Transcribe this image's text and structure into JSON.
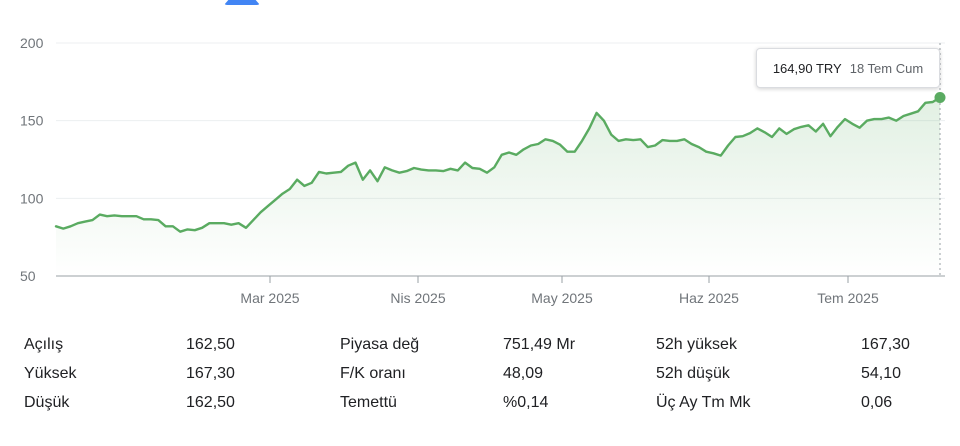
{
  "chart_data": {
    "type": "area",
    "y_ticks": [
      "200",
      "150",
      "100",
      "50"
    ],
    "ylim": [
      50,
      200
    ],
    "x_tick_labels": [
      "Mar 2025",
      "Nis 2025",
      "May 2025",
      "Haz 2025",
      "Tem 2025"
    ],
    "series": [
      {
        "color": "#5aab61",
        "values": [
          82,
          80.5,
          82,
          84,
          85,
          86,
          89.5,
          88.5,
          89,
          88.5,
          88.5,
          88.5,
          86.5,
          86.5,
          86,
          82,
          82,
          78.5,
          80,
          79.5,
          81,
          84,
          84,
          84,
          83,
          84,
          81,
          86,
          91,
          95,
          99,
          103,
          106,
          112,
          108,
          110,
          117,
          116,
          116.5,
          117,
          121,
          123,
          112,
          118,
          111,
          120,
          118,
          116.5,
          117.5,
          119.5,
          118.5,
          118,
          118,
          117.5,
          119,
          118,
          123,
          119.5,
          119,
          116.5,
          120,
          128,
          129.5,
          128,
          131.5,
          134,
          135,
          138,
          137,
          134.5,
          130,
          130,
          137,
          145,
          155,
          150,
          141,
          137,
          138,
          137.5,
          138,
          133,
          134,
          137.5,
          137,
          137,
          138,
          135,
          133,
          130,
          129,
          127.5,
          134,
          139.5,
          140,
          142,
          145,
          142.5,
          139.5,
          145,
          141.5,
          144.5,
          146,
          147,
          143,
          148,
          140,
          146,
          151,
          148,
          145.5,
          150,
          151,
          151,
          152,
          150,
          153,
          154.5,
          156,
          161.5,
          162,
          164.9
        ]
      }
    ]
  },
  "tooltip": {
    "price": "164,90 TRY",
    "date": "18 Tem Cum"
  },
  "colors": {
    "line": "#5aab61",
    "marker": "#4285f4"
  },
  "stats": [
    [
      {
        "label": "Açılış",
        "value": "162,50"
      },
      {
        "label": "Piyasa değ",
        "value": "751,49 Mr"
      },
      {
        "label": "52h yüksek",
        "value": "167,30"
      }
    ],
    [
      {
        "label": "Yüksek",
        "value": "167,30"
      },
      {
        "label": "F/K oranı",
        "value": "48,09"
      },
      {
        "label": "52h düşük",
        "value": "54,10"
      }
    ],
    [
      {
        "label": "Düşük",
        "value": "162,50"
      },
      {
        "label": "Temettü",
        "value": "%0,14"
      },
      {
        "label": "Üç Ay Tm Mk",
        "value": "0,06"
      }
    ]
  ]
}
